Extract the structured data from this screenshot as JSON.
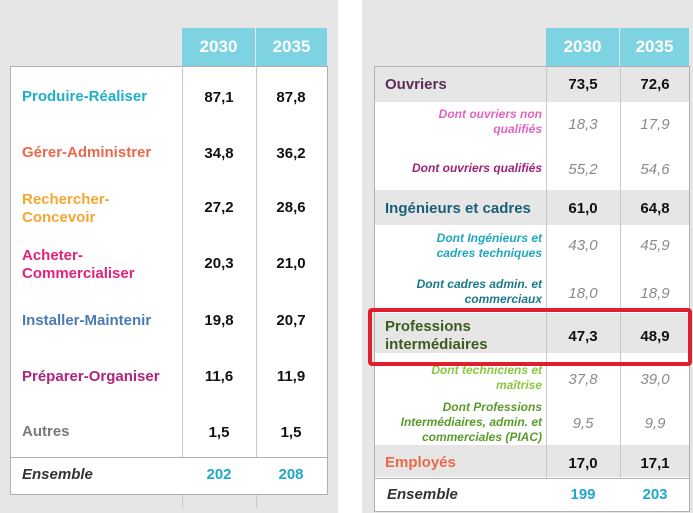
{
  "left": {
    "years": [
      "2030",
      "2035"
    ],
    "rows": [
      {
        "label": "Produire-Réaliser",
        "v1": "87,1",
        "v2": "87,8",
        "color": "#1fb0c8"
      },
      {
        "label": "Gérer-Administrer",
        "v1": "34,8",
        "v2": "36,2",
        "color": "#e8694a"
      },
      {
        "label": "Rechercher-Concevoir",
        "v1": "27,2",
        "v2": "28,6",
        "color": "#f4a733"
      },
      {
        "label": "Acheter-Commercialiser",
        "v1": "20,3",
        "v2": "21,0",
        "color": "#e0237a"
      },
      {
        "label": "Installer-Maintenir",
        "v1": "19,8",
        "v2": "20,7",
        "color": "#4a7ab5"
      },
      {
        "label": "Préparer-Organiser",
        "v1": "11,6",
        "v2": "11,9",
        "color": "#b0237a"
      },
      {
        "label": "Autres",
        "v1": "1,5",
        "v2": "1,5",
        "color": "#7a7a7a"
      }
    ],
    "total": {
      "label": "Ensemble",
      "v1": "202",
      "v2": "208"
    }
  },
  "right": {
    "years": [
      "2030",
      "2035"
    ],
    "rows": [
      {
        "label": "Ouvriers",
        "v1": "73,5",
        "v2": "72,6",
        "color": "#5a2d5a",
        "sub": false
      },
      {
        "label": "Dont ouvriers non qualifiés",
        "v1": "18,3",
        "v2": "17,9",
        "color": "#e065c0",
        "sub": true
      },
      {
        "label": "Dont ouvriers qualifiés",
        "v1": "55,2",
        "v2": "54,6",
        "color": "#a0237a",
        "sub": true
      },
      {
        "label": "Ingénieurs et cadres",
        "v1": "61,0",
        "v2": "64,8",
        "color": "#1a5f78",
        "sub": false
      },
      {
        "label": "Dont Ingénieurs et cadres techniques",
        "v1": "43,0",
        "v2": "45,9",
        "color": "#1fa8c0",
        "sub": true
      },
      {
        "label": "Dont cadres admin. et commerciaux",
        "v1": "18,0",
        "v2": "18,9",
        "color": "#1a7a8a",
        "sub": true
      },
      {
        "label": "Professions intermédiaires",
        "v1": "47,3",
        "v2": "48,9",
        "color": "#3f5a1f",
        "sub": false
      },
      {
        "label": "Dont techniciens et maîtrise",
        "v1": "37,8",
        "v2": "39,0",
        "color": "#8cc63f",
        "sub": true
      },
      {
        "label": "Dont Professions Intermédiaires, admin. et commerciales (PIAC)",
        "v1": "9,5",
        "v2": "9,9",
        "color": "#5a9a2a",
        "sub": true
      },
      {
        "label": "Employés",
        "v1": "17,0",
        "v2": "17,1",
        "color": "#e8694a",
        "sub": false
      }
    ],
    "total": {
      "label": "Ensemble",
      "v1": "199",
      "v2": "203"
    }
  },
  "colors": {
    "total_value": "#1fa8c8",
    "highlight": "#e01e2d",
    "header": "#7dd3e2"
  }
}
